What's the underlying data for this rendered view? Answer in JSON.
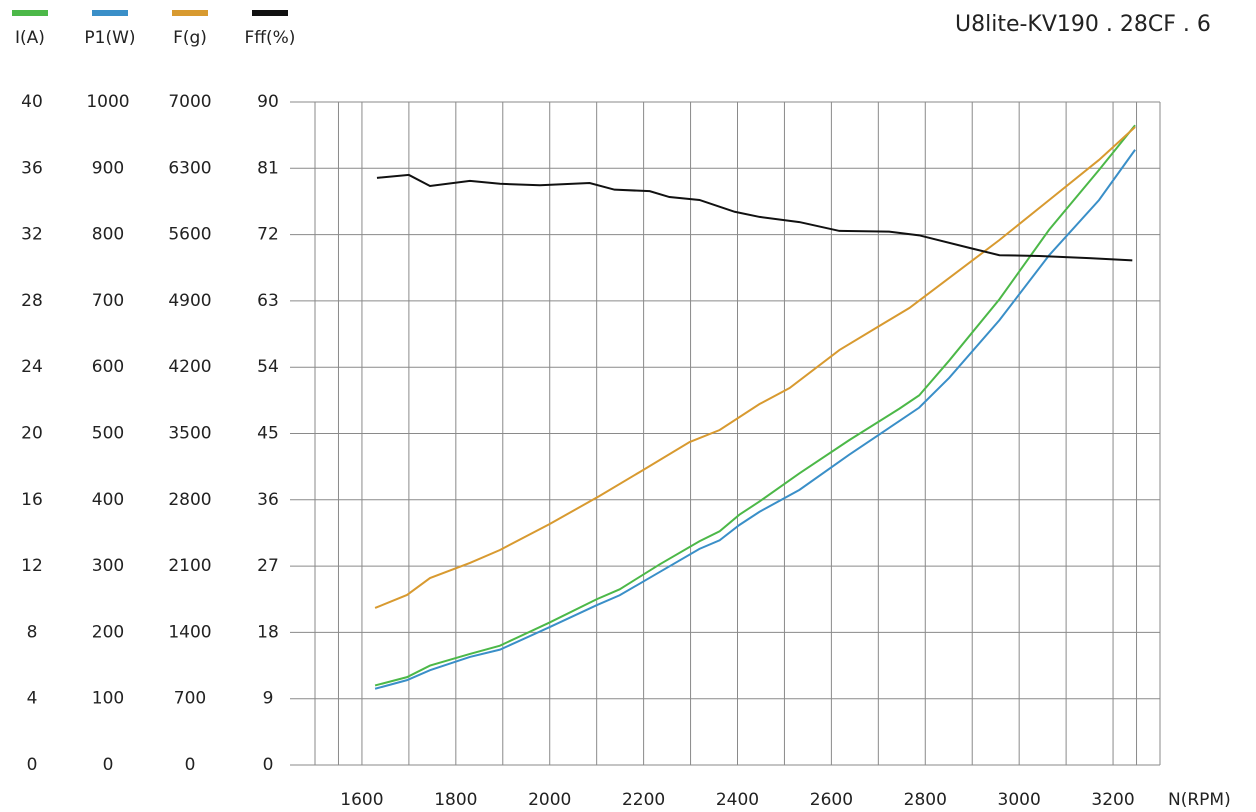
{
  "chart_data": {
    "type": "line",
    "title": "U8lite-KV190 . 28CF . 6",
    "x_label": "N(RPM)",
    "xlim": [
      1500,
      3300
    ],
    "xticks": [
      1600,
      1800,
      2000,
      2200,
      2400,
      2600,
      2800,
      3000,
      3200
    ],
    "grid": true,
    "ylim": [
      0,
      40
    ],
    "yticks": [
      0,
      4,
      8,
      12,
      16,
      20,
      24,
      28,
      32,
      36,
      40
    ],
    "y2lim": [
      0,
      1000
    ],
    "y2ticks": [
      0,
      100,
      200,
      300,
      400,
      500,
      600,
      700,
      800,
      900,
      1000
    ],
    "y3lim": [
      0,
      7000
    ],
    "y3ticks": [
      0,
      700,
      1400,
      2100,
      2800,
      3500,
      4200,
      4900,
      5600,
      6300,
      7000
    ],
    "y4lim": [
      0,
      90
    ],
    "y4ticks": [
      0,
      9,
      18,
      27,
      36,
      45,
      54,
      63,
      72,
      81,
      90
    ],
    "series": [
      {
        "name": "I(A)",
        "color": "#4cb848",
        "axis": "y",
        "x": [
          1628,
          1696,
          1745,
          1830,
          1894,
          2000,
          2100,
          2149,
          2234,
          2319,
          2362,
          2404,
          2447,
          2532,
          2638,
          2745,
          2787,
          2851,
          2958,
          3064,
          3170,
          3247
        ],
        "values": [
          4.8,
          5.3,
          6.0,
          6.7,
          7.2,
          8.6,
          10.0,
          10.6,
          12.1,
          13.5,
          14.1,
          15.1,
          15.9,
          17.6,
          19.6,
          21.5,
          22.3,
          24.4,
          28.1,
          32.3,
          35.9,
          38.6
        ]
      },
      {
        "name": "P1(W)",
        "color": "#3a8fc8",
        "axis": "y2",
        "x": [
          1628,
          1696,
          1745,
          1830,
          1894,
          2000,
          2100,
          2149,
          2234,
          2319,
          2362,
          2404,
          2447,
          2532,
          2638,
          2745,
          2787,
          2851,
          2958,
          3064,
          3170,
          3247
        ],
        "values": [
          115,
          128,
          143,
          163,
          174,
          208,
          241,
          256,
          291,
          326,
          339,
          362,
          382,
          415,
          468,
          519,
          539,
          584,
          671,
          769,
          852,
          928
        ]
      },
      {
        "name": "F(g)",
        "color": "#d89a30",
        "axis": "y3",
        "x": [
          1628,
          1696,
          1745,
          1830,
          1894,
          2000,
          2106,
          2192,
          2298,
          2362,
          2447,
          2511,
          2617,
          2702,
          2766,
          2851,
          2958,
          3064,
          3170,
          3247
        ],
        "values": [
          1658,
          1795,
          1974,
          2133,
          2270,
          2545,
          2840,
          3094,
          3410,
          3537,
          3811,
          3980,
          4381,
          4635,
          4825,
          5142,
          5543,
          5965,
          6388,
          6736
        ]
      },
      {
        "name": "Fff(%)",
        "color": "#111111",
        "axis": "y4",
        "x": [
          1632,
          1700,
          1745,
          1830,
          1894,
          1979,
          2085,
          2138,
          2213,
          2255,
          2319,
          2394,
          2447,
          2532,
          2617,
          2723,
          2787,
          2894,
          2958,
          3043,
          3149,
          3241
        ],
        "values": [
          79.7,
          80.1,
          78.6,
          79.3,
          78.9,
          78.7,
          79.0,
          78.1,
          77.9,
          77.1,
          76.7,
          75.1,
          74.4,
          73.7,
          72.5,
          72.4,
          71.9,
          70.2,
          69.2,
          69.1,
          68.8,
          68.5
        ]
      }
    ]
  }
}
